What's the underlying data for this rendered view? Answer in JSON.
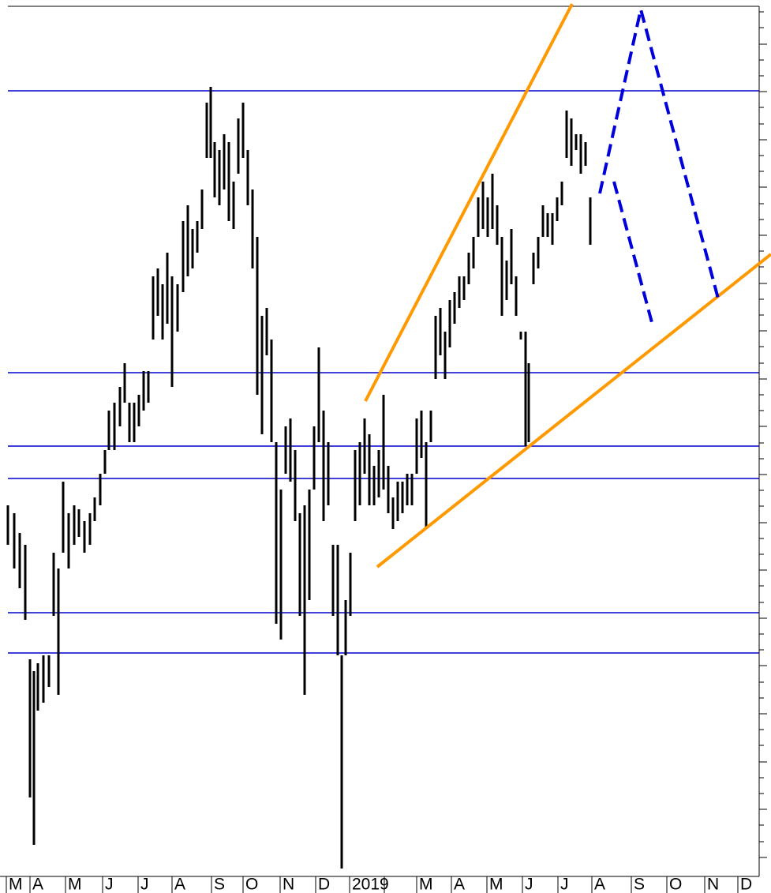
{
  "chart_data": {
    "type": "hilo",
    "color": "#000000",
    "level_color": "#0000cc",
    "xlim": [
      0,
      962
    ],
    "ylim": [
      0,
      1102
    ],
    "xticks": [
      {
        "value": 8,
        "label": "M"
      },
      {
        "value": 38,
        "label": "A"
      },
      {
        "value": 83,
        "label": "M"
      },
      {
        "value": 130,
        "label": "J"
      },
      {
        "value": 175,
        "label": "J"
      },
      {
        "value": 218,
        "label": "A"
      },
      {
        "value": 268,
        "label": "S"
      },
      {
        "value": 308,
        "label": "O"
      },
      {
        "value": 355,
        "label": "N"
      },
      {
        "value": 400,
        "label": "D"
      },
      {
        "value": 443,
        "label": "2019"
      },
      {
        "value": 487,
        "label": null
      },
      {
        "value": 528,
        "label": "M"
      },
      {
        "value": 572,
        "label": "A"
      },
      {
        "value": 617,
        "label": "M"
      },
      {
        "value": 662,
        "label": "J"
      },
      {
        "value": 707,
        "label": "J"
      },
      {
        "value": 750,
        "label": "A"
      },
      {
        "value": 800,
        "label": "S"
      },
      {
        "value": 845,
        "label": "O"
      },
      {
        "value": 893,
        "label": "N"
      },
      {
        "value": 935,
        "label": "D"
      }
    ],
    "yticks": [
      24,
      44,
      65,
      85,
      105,
      125,
      145,
      166,
      186,
      206,
      226,
      246,
      267,
      287,
      307,
      327,
      347,
      368,
      388,
      408,
      428,
      448,
      469,
      489,
      509,
      529,
      549,
      570,
      590,
      610,
      630,
      650,
      671,
      691,
      711,
      731,
      751,
      772,
      792,
      812,
      832,
      852,
      873,
      893,
      913,
      933,
      953,
      974,
      994,
      1014,
      1034,
      1054,
      1075,
      1095
    ],
    "levels": [
      995,
      638,
      545,
      504,
      334,
      283
    ],
    "x": [
      10,
      18,
      25,
      32,
      38,
      43,
      48,
      55,
      62,
      68,
      74,
      80,
      87,
      94,
      100,
      107,
      114,
      120,
      127,
      133,
      138,
      145,
      152,
      158,
      164,
      170,
      176,
      182,
      188,
      194,
      200,
      206,
      212,
      218,
      225,
      232,
      238,
      244,
      250,
      256,
      262,
      267,
      272,
      278,
      284,
      290,
      296,
      302,
      308,
      314,
      320,
      326,
      332,
      338,
      344,
      350,
      356,
      362,
      368,
      374,
      380,
      386,
      392,
      398,
      404,
      410,
      416,
      422,
      428,
      433,
      438,
      444,
      450,
      456,
      462,
      468,
      474,
      480,
      486,
      492,
      498,
      504,
      510,
      516,
      522,
      528,
      534,
      540,
      546,
      552,
      558,
      564,
      570,
      576,
      582,
      588,
      594,
      600,
      606,
      612,
      618,
      624,
      630,
      636,
      642,
      648,
      654,
      660,
      666,
      670,
      676,
      682,
      688,
      694,
      700,
      706,
      712,
      718,
      724,
      730,
      736,
      742,
      748
    ],
    "high": [
      470,
      460,
      435,
      420,
      275,
      260,
      270,
      280,
      280,
      410,
      390,
      500,
      460,
      470,
      465,
      450,
      460,
      480,
      510,
      540,
      590,
      600,
      620,
      650,
      600,
      600,
      610,
      640,
      640,
      760,
      770,
      750,
      790,
      760,
      750,
      830,
      850,
      820,
      830,
      870,
      980,
      1000,
      930,
      920,
      940,
      930,
      880,
      960,
      980,
      920,
      870,
      810,
      710,
      720,
      680,
      550,
      490,
      570,
      580,
      540,
      460,
      470,
      490,
      570,
      670,
      590,
      550,
      420,
      420,
      280,
      350,
      410,
      540,
      550,
      580,
      560,
      520,
      540,
      610,
      520,
      480,
      500,
      500,
      510,
      510,
      580,
      590,
      550,
      590,
      710,
      720,
      690,
      730,
      740,
      760,
      760,
      790,
      810,
      860,
      880,
      860,
      890,
      850,
      810,
      780,
      820,
      760,
      690,
      690,
      650,
      790,
      810,
      850,
      840,
      840,
      860,
      880,
      970,
      960,
      940,
      940,
      930,
      860
    ],
    "low": [
      420,
      390,
      365,
      325,
      100,
      40,
      210,
      220,
      240,
      330,
      230,
      410,
      390,
      420,
      430,
      410,
      420,
      450,
      470,
      510,
      540,
      540,
      570,
      600,
      550,
      550,
      570,
      590,
      600,
      680,
      710,
      680,
      700,
      620,
      690,
      740,
      760,
      770,
      790,
      820,
      910,
      910,
      860,
      850,
      870,
      830,
      820,
      890,
      910,
      850,
      770,
      610,
      560,
      660,
      550,
      320,
      300,
      510,
      500,
      450,
      330,
      230,
      350,
      490,
      550,
      450,
      470,
      330,
      280,
      10,
      280,
      330,
      450,
      470,
      510,
      470,
      470,
      480,
      490,
      460,
      440,
      450,
      460,
      470,
      470,
      510,
      530,
      440,
      550,
      630,
      660,
      630,
      670,
      700,
      720,
      730,
      750,
      770,
      810,
      820,
      810,
      820,
      800,
      710,
      730,
      750,
      710,
      680,
      545,
      550,
      750,
      770,
      810,
      810,
      800,
      830,
      850,
      910,
      900,
      920,
      890,
      900,
      800
    ]
  }
}
